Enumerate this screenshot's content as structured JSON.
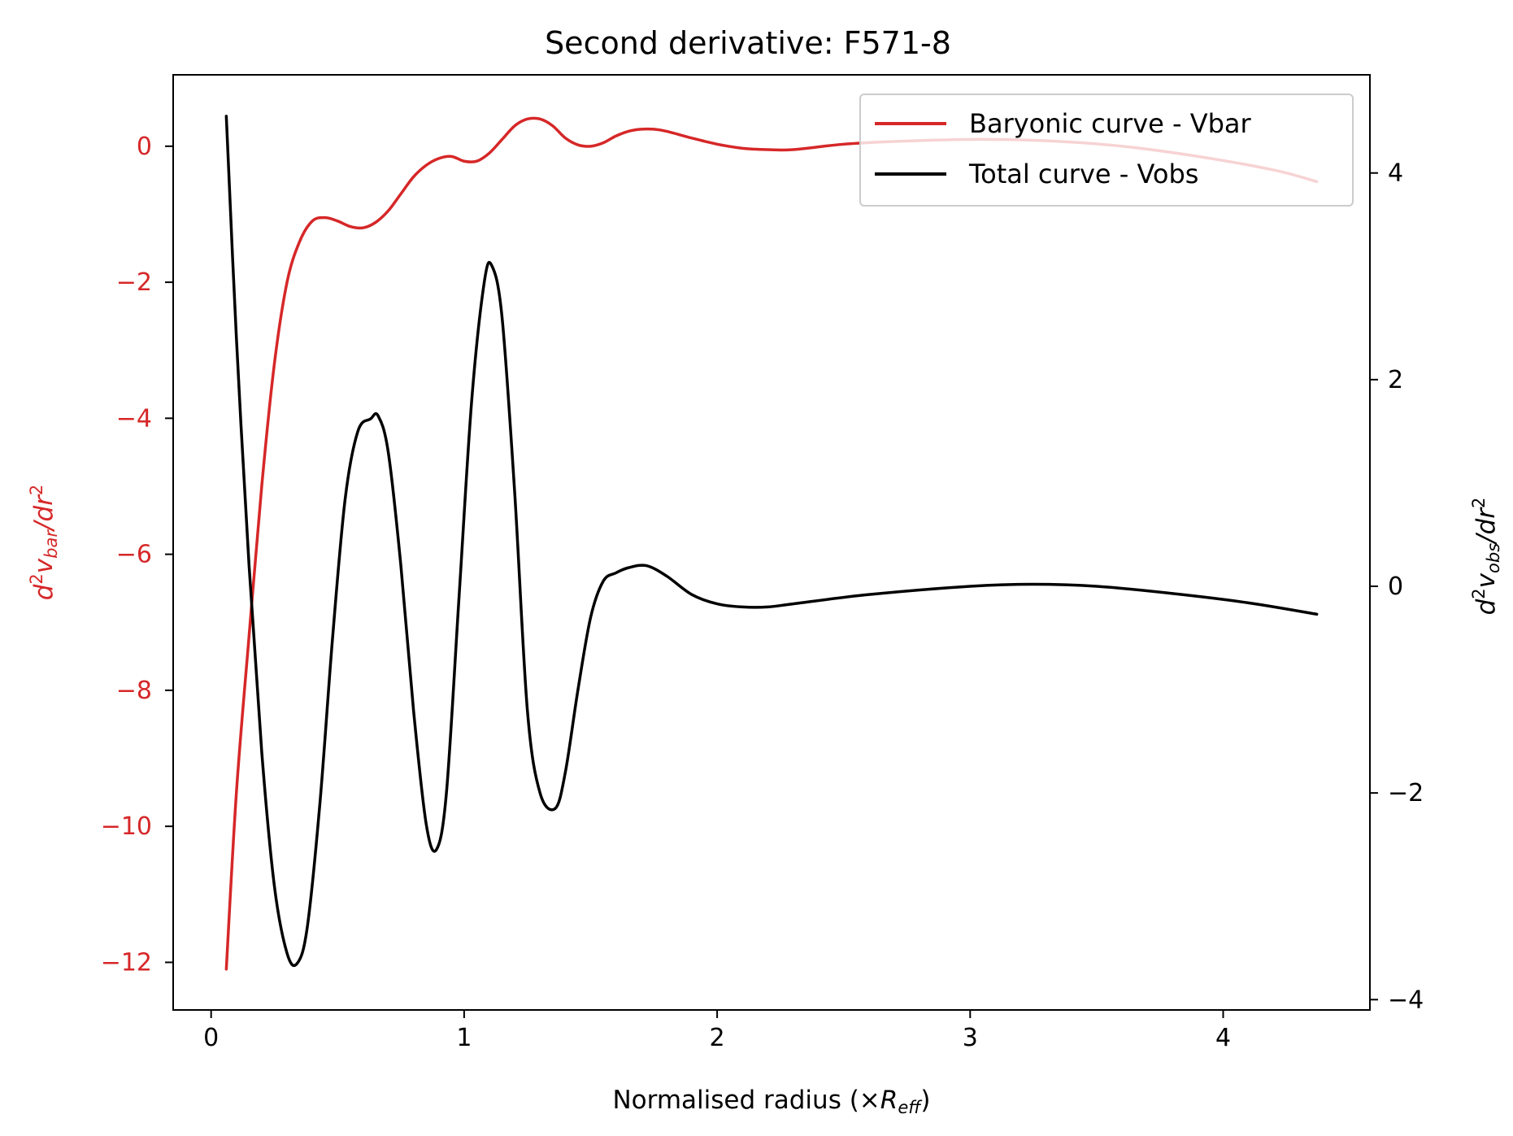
{
  "chart_data": {
    "type": "line",
    "title": "Second derivative: F571-8",
    "xlabel": "Normalised radius (×R_eff)",
    "xlabel_parts": {
      "prefix": "Normalised radius (×",
      "sym": "R",
      "sub": "eff",
      "suffix": ")"
    },
    "ylabel_left": "d²v_bar/dr²",
    "ylabel_left_parts": {
      "d": "d",
      "sup1": "2",
      "v": "v",
      "sub": "bar",
      "slash": "/dr",
      "sup2": "2"
    },
    "ylabel_right": "d²v_obs/dr²",
    "ylabel_right_parts": {
      "d": "d",
      "sup1": "2",
      "v": "v",
      "sub": "obs",
      "slash": "/dr",
      "sup2": "2"
    },
    "xlim": [
      -0.15,
      4.58
    ],
    "ylim_left": [
      -12.7,
      1.05
    ],
    "ylim_right": [
      -4.1,
      4.95
    ],
    "x_ticks": [
      0,
      1,
      2,
      3,
      4
    ],
    "x_tick_labels": [
      "0",
      "1",
      "2",
      "3",
      "4"
    ],
    "y_left_ticks": [
      0,
      -2,
      -4,
      -6,
      -8,
      -10,
      -12
    ],
    "y_left_tick_labels": [
      "0",
      "−2",
      "−4",
      "−6",
      "−8",
      "−10",
      "−12"
    ],
    "y_right_ticks": [
      4,
      2,
      0,
      -2,
      -4
    ],
    "y_right_tick_labels": [
      "4",
      "2",
      "0",
      "−2",
      "−4"
    ],
    "grid": false,
    "legend_position": "top-right",
    "colors": {
      "bar": "#d62728",
      "obs": "#000000"
    },
    "series": [
      {
        "name": "Baryonic curve - Vbar",
        "axis": "left",
        "color": "#d62728",
        "x": [
          0.06,
          0.1,
          0.15,
          0.2,
          0.25,
          0.3,
          0.35,
          0.4,
          0.45,
          0.5,
          0.55,
          0.6,
          0.65,
          0.7,
          0.75,
          0.8,
          0.85,
          0.9,
          0.95,
          1.0,
          1.05,
          1.1,
          1.15,
          1.2,
          1.25,
          1.3,
          1.35,
          1.4,
          1.45,
          1.5,
          1.55,
          1.6,
          1.65,
          1.7,
          1.75,
          1.8,
          1.9,
          2.0,
          2.1,
          2.2,
          2.3,
          2.5,
          2.7,
          3.0,
          3.3,
          3.6,
          3.9,
          4.2,
          4.37
        ],
        "y": [
          -12.1,
          -9.5,
          -7.2,
          -5.0,
          -3.2,
          -2.0,
          -1.4,
          -1.1,
          -1.05,
          -1.1,
          -1.18,
          -1.2,
          -1.12,
          -0.95,
          -0.7,
          -0.45,
          -0.28,
          -0.18,
          -0.15,
          -0.22,
          -0.22,
          -0.1,
          0.1,
          0.3,
          0.4,
          0.4,
          0.3,
          0.12,
          0.02,
          0.0,
          0.05,
          0.15,
          0.22,
          0.25,
          0.25,
          0.22,
          0.12,
          0.03,
          -0.03,
          -0.05,
          -0.05,
          0.03,
          0.07,
          0.1,
          0.08,
          0.0,
          -0.15,
          -0.35,
          -0.52
        ]
      },
      {
        "name": "Total curve - Vobs",
        "axis": "right",
        "color": "#000000",
        "x": [
          0.06,
          0.1,
          0.15,
          0.2,
          0.25,
          0.3,
          0.34,
          0.38,
          0.43,
          0.48,
          0.53,
          0.58,
          0.63,
          0.66,
          0.7,
          0.75,
          0.8,
          0.85,
          0.89,
          0.93,
          0.98,
          1.03,
          1.08,
          1.11,
          1.15,
          1.2,
          1.25,
          1.3,
          1.36,
          1.4,
          1.45,
          1.5,
          1.55,
          1.6,
          1.65,
          1.72,
          1.8,
          1.9,
          2.0,
          2.1,
          2.2,
          2.3,
          2.6,
          3.0,
          3.25,
          3.5,
          3.8,
          4.1,
          4.37
        ],
        "y": [
          4.55,
          2.4,
          0.2,
          -1.6,
          -2.9,
          -3.55,
          -3.65,
          -3.3,
          -2.1,
          -0.5,
          0.85,
          1.5,
          1.62,
          1.65,
          1.3,
          0.2,
          -1.2,
          -2.3,
          -2.55,
          -2.0,
          -0.1,
          1.8,
          2.95,
          3.1,
          2.6,
          0.9,
          -1.2,
          -2.0,
          -2.15,
          -1.8,
          -1.0,
          -0.3,
          0.05,
          0.13,
          0.18,
          0.2,
          0.1,
          -0.08,
          -0.17,
          -0.2,
          -0.2,
          -0.17,
          -0.08,
          0.0,
          0.02,
          0.0,
          -0.07,
          -0.16,
          -0.27
        ]
      }
    ]
  }
}
